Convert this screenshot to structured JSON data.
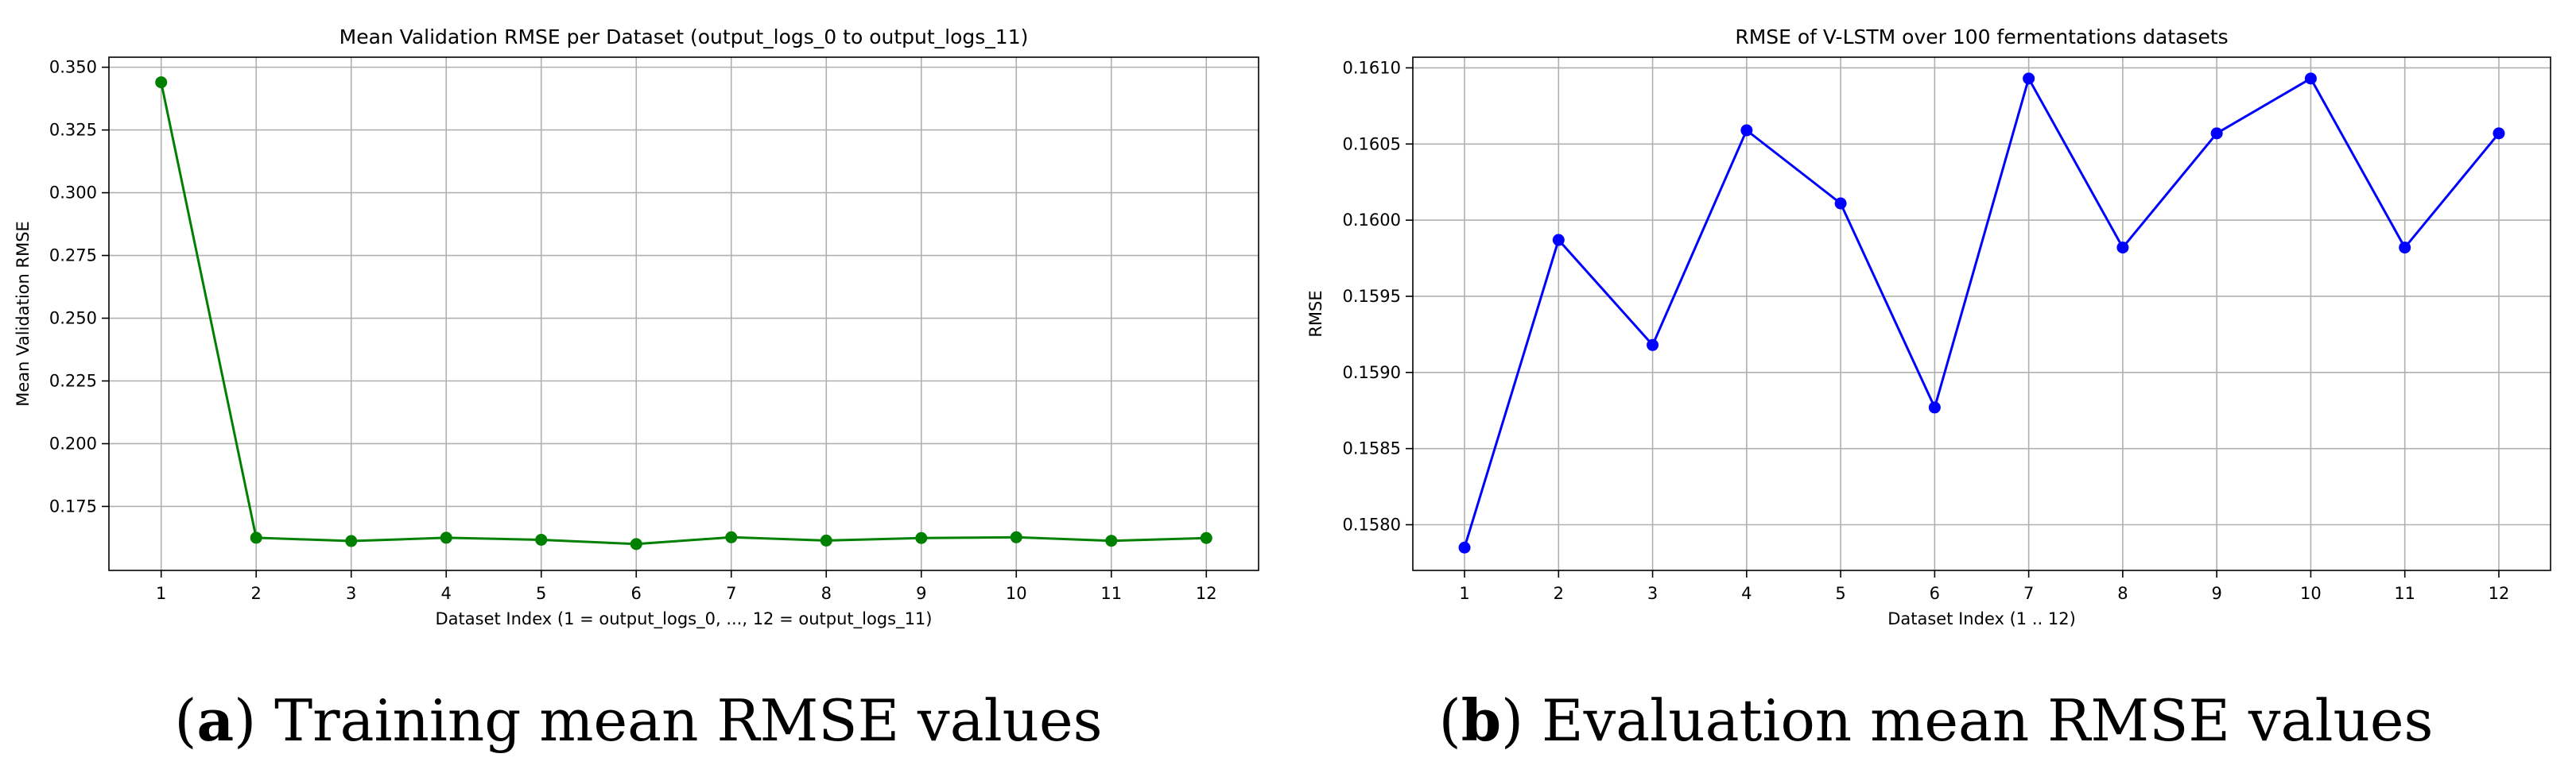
{
  "chart_data": [
    {
      "type": "line",
      "title": "Mean Validation RMSE per Dataset (output_logs_0 to output_logs_11)",
      "xlabel": "Dataset Index (1 = output_logs_0, ..., 12 = output_logs_11)",
      "ylabel": "Mean Validation RMSE",
      "x": [
        1,
        2,
        3,
        4,
        5,
        6,
        7,
        8,
        9,
        10,
        11,
        12
      ],
      "x_ticks": [
        "1",
        "2",
        "3",
        "4",
        "5",
        "6",
        "7",
        "8",
        "9",
        "10",
        "11",
        "12"
      ],
      "y_ticks": [
        "0.175",
        "0.200",
        "0.225",
        "0.250",
        "0.275",
        "0.300",
        "0.325",
        "0.350"
      ],
      "series": [
        {
          "values": [
            0.344,
            0.1625,
            0.1612,
            0.1625,
            0.1617,
            0.16,
            0.1627,
            0.1614,
            0.1624,
            0.1627,
            0.1613,
            0.1624
          ]
        }
      ],
      "ylim": [
        0.1495,
        0.354
      ],
      "xlim": [
        0.45,
        12.55
      ],
      "color": "#008000",
      "grid": true,
      "caption": {
        "label": "a",
        "text": "Training mean RMSE values"
      }
    },
    {
      "type": "line",
      "title": "RMSE of V-LSTM  over 100 fermentations datasets",
      "xlabel": "Dataset Index (1 .. 12)",
      "ylabel": "RMSE",
      "x": [
        1,
        2,
        3,
        4,
        5,
        6,
        7,
        8,
        9,
        10,
        11,
        12
      ],
      "x_ticks": [
        "1",
        "2",
        "3",
        "4",
        "5",
        "6",
        "7",
        "8",
        "9",
        "10",
        "11",
        "12"
      ],
      "y_ticks": [
        "0.1580",
        "0.1585",
        "0.1590",
        "0.1595",
        "0.1600",
        "0.1605",
        "0.1610"
      ],
      "series": [
        {
          "values": [
            0.15785,
            0.15987,
            0.15918,
            0.16059,
            0.16011,
            0.15877,
            0.16093,
            0.15982,
            0.16057,
            0.16093,
            0.15982,
            0.16057
          ]
        }
      ],
      "ylim": [
        0.1577,
        0.16107
      ],
      "xlim": [
        0.45,
        12.55
      ],
      "color": "#0000ff",
      "grid": true,
      "caption": {
        "label": "b",
        "text": "Evaluation mean RMSE values"
      }
    }
  ]
}
